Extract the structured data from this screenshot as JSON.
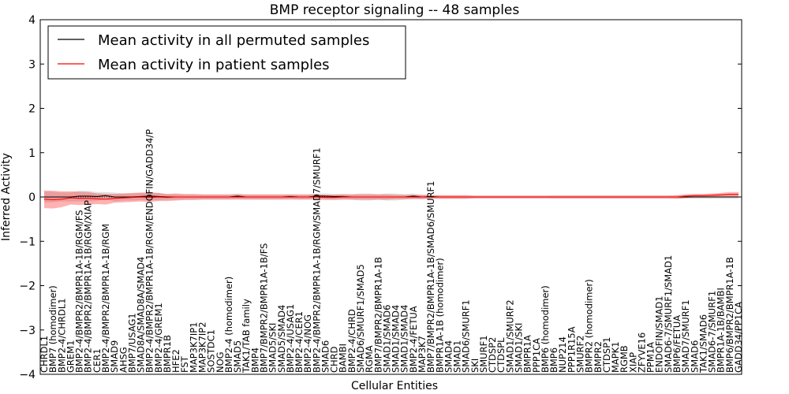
{
  "chart_data": {
    "type": "line",
    "title": "BMP receptor signaling -- 48 samples",
    "xlabel": "Cellular Entities",
    "ylabel": "Inferred Activity",
    "ylim": [
      -4,
      4
    ],
    "yticks": [
      "4",
      "3",
      "2",
      "1",
      "0",
      "−1",
      "−2",
      "−3",
      "−4"
    ],
    "ytick_values": [
      4,
      3,
      2,
      1,
      0,
      -1,
      -2,
      -3,
      -4
    ],
    "legend": {
      "position": "top-left",
      "entries": [
        {
          "label": "Mean activity in all permuted samples",
          "color": "#000000"
        },
        {
          "label": "Mean activity in patient samples",
          "color": "#ff0000"
        }
      ]
    },
    "categories": [
      "CHRDL1",
      "BMP7 (homodimer)",
      "BMP2-4/CHRDL1",
      "GREM1",
      "BMP2-4/BMPR2/BMPR1A-1B/RGM/FS",
      "BMP2-4/BMPR2/BMPR1A-1B/RGM/XIAP",
      "CER1",
      "BMP2-4/BMPR2/BMPR1A-1B/RGM",
      "SMAD9",
      "AHSG",
      "BMP7/USAG1",
      "SMAD8A/SMAD8A/SMAD4",
      "BMP2-4/BMPR2/BMPR1A-1B/RGM/ENDOFIN/GADD34/P",
      "BMP2-4/GREM1",
      "BMPR1B",
      "HFE2",
      "FST",
      "MAP3K7IP1",
      "MAP3K7IP2",
      "SOSTDC1",
      "NOG",
      "BMP2-4 (homodimer)",
      "SMAD5",
      "TAK1/TAB family",
      "BMP4",
      "BMP7/BMPR2/BMPR1A-1B/FS",
      "SMAD5/SKI",
      "SMAD5/SMAD4",
      "BMP2-4/USAG1",
      "BMP2-4/CER1",
      "BMP2-4/NOG",
      "BMP2-4/BMPR2/BMPR1A-1B/RGM/SMAD7/SMURF1",
      "SMAD6",
      "CHRD",
      "BAMBI",
      "BMP2-4/CHRD",
      "SMAD6/SMURF1/SMAD5",
      "RGMA",
      "BMP7/BMPR2/BMPR1A-1B",
      "SMAD1/SMAD6",
      "SMAD1/SMAD4",
      "SMAD1/SMAD4",
      "BMP2-4/FETUA",
      "MAP3K7",
      "BMP7/BMPR2/BMPR1A-1B/SMAD6/SMURF1",
      "BMPR1A-1B (homodimer)",
      "SMAD4",
      "SMAD1",
      "SMAD6/SMURF1",
      "SKI",
      "SMURF1",
      "CTDSP2",
      "CTDSPL",
      "SMAD1/SMURF2",
      "SMAD1/SKI",
      "BMPR1A",
      "PPP1CA",
      "BMP6 (homodimer)",
      "BMP6",
      "NUP214",
      "PPP1R15A",
      "SMURF2",
      "BMPR2 (homodimer)",
      "BMPR2",
      "CTDSP1",
      "MAPK1",
      "RGMB",
      "XIAP",
      "ZFYVE16",
      "PPM1A",
      "ENDOFIN/SMAD1",
      "SMAD6-7/SMURF1/SMAD1",
      "BMP6/FETUA",
      "SMAD7/SMURF1",
      "SMAD6",
      "TAK1/SMAD6",
      "SMAD6-7/SMURF1",
      "BMPR1A-1B/BAMBI",
      "BMP6/BMPR2/BMPR1A-1B",
      "GADD34/PP1CA"
    ],
    "series": [
      {
        "name": "Mean activity in all permuted samples",
        "color": "#000000",
        "values": [
          0.0,
          0.0,
          0.0,
          0.0,
          0.02,
          0.02,
          0.01,
          0.03,
          0.0,
          0.0,
          0.0,
          0.01,
          0.02,
          0.01,
          0.0,
          0.0,
          0.0,
          0.0,
          0.0,
          0.0,
          0.0,
          0.0,
          0.02,
          0.0,
          0.0,
          0.0,
          0.0,
          0.0,
          0.01,
          0.0,
          0.0,
          0.02,
          0.02,
          0.01,
          0.01,
          0.0,
          0.0,
          0.0,
          0.0,
          0.0,
          0.0,
          0.0,
          0.02,
          0.0,
          0.01,
          0.0,
          0.0,
          0.0,
          0.0,
          0.0,
          0.0,
          0.0,
          0.0,
          0.0,
          0.0,
          0.0,
          0.0,
          0.0,
          0.0,
          0.0,
          0.0,
          0.0,
          0.0,
          0.0,
          0.0,
          0.0,
          0.0,
          0.0,
          0.0,
          0.0,
          0.0,
          0.0,
          0.0,
          0.0,
          0.0,
          0.0,
          0.0,
          0.0,
          0.0,
          0.0
        ],
        "band": [
          0.12,
          0.12,
          0.1,
          0.1,
          0.12,
          0.12,
          0.1,
          0.08,
          0.1,
          0.08,
          0.08,
          0.08,
          0.1,
          0.08,
          0.06,
          0.06,
          0.05,
          0.05,
          0.05,
          0.05,
          0.05,
          0.05,
          0.06,
          0.05,
          0.05,
          0.05,
          0.05,
          0.05,
          0.05,
          0.05,
          0.05,
          0.06,
          0.06,
          0.06,
          0.06,
          0.06,
          0.08,
          0.08,
          0.06,
          0.08,
          0.08,
          0.06,
          0.06,
          0.05,
          0.04,
          0.04,
          0.04,
          0.04,
          0.04,
          0.03,
          0.03,
          0.03,
          0.03,
          0.03,
          0.03,
          0.03,
          0.03,
          0.03,
          0.04,
          0.04,
          0.04,
          0.04,
          0.04,
          0.04,
          0.04,
          0.04,
          0.04,
          0.04,
          0.04,
          0.04,
          0.04,
          0.04,
          0.04,
          0.04,
          0.04,
          0.04,
          0.04,
          0.04,
          0.04,
          0.04
        ]
      },
      {
        "name": "Mean activity in patient samples",
        "color": "#ff0000",
        "values": [
          -0.05,
          -0.06,
          -0.05,
          -0.02,
          -0.03,
          -0.03,
          -0.04,
          -0.05,
          -0.03,
          -0.02,
          -0.01,
          0.0,
          -0.01,
          0.0,
          -0.01,
          0.0,
          0.0,
          0.0,
          0.0,
          0.0,
          0.0,
          0.0,
          0.0,
          0.0,
          0.0,
          0.0,
          0.0,
          0.0,
          0.0,
          0.0,
          0.0,
          0.0,
          -0.01,
          -0.01,
          0.0,
          0.0,
          0.0,
          0.0,
          0.0,
          0.0,
          0.0,
          0.0,
          0.0,
          0.0,
          0.0,
          0.0,
          0.0,
          0.0,
          0.0,
          0.0,
          0.0,
          0.0,
          0.0,
          0.0,
          0.0,
          0.0,
          0.0,
          0.0,
          0.0,
          0.0,
          0.0,
          0.0,
          0.0,
          0.0,
          0.0,
          0.0,
          0.0,
          0.0,
          0.0,
          0.0,
          0.0,
          0.0,
          0.0,
          0.02,
          0.03,
          0.03,
          0.04,
          0.05,
          0.06,
          0.06
        ],
        "band": [
          0.2,
          0.2,
          0.18,
          0.15,
          0.15,
          0.14,
          0.12,
          0.12,
          0.1,
          0.1,
          0.1,
          0.1,
          0.1,
          0.09,
          0.08,
          0.08,
          0.07,
          0.07,
          0.06,
          0.06,
          0.06,
          0.06,
          0.06,
          0.06,
          0.06,
          0.06,
          0.06,
          0.06,
          0.06,
          0.06,
          0.06,
          0.06,
          0.06,
          0.06,
          0.06,
          0.06,
          0.06,
          0.06,
          0.06,
          0.06,
          0.05,
          0.05,
          0.05,
          0.05,
          0.04,
          0.04,
          0.04,
          0.04,
          0.04,
          0.03,
          0.03,
          0.03,
          0.03,
          0.03,
          0.03,
          0.03,
          0.03,
          0.03,
          0.03,
          0.03,
          0.03,
          0.03,
          0.03,
          0.03,
          0.03,
          0.03,
          0.03,
          0.03,
          0.03,
          0.03,
          0.03,
          0.03,
          0.04,
          0.04,
          0.04,
          0.04,
          0.04,
          0.04,
          0.05,
          0.05
        ]
      }
    ]
  }
}
